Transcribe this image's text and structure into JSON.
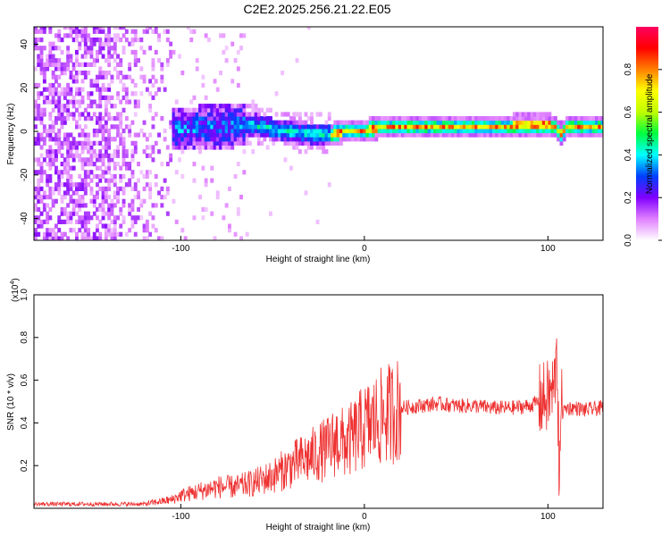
{
  "chart_data": [
    {
      "type": "heatmap",
      "title": "C2E2.2025.256.21.22.E05",
      "xlabel": "Height of straight line (km)",
      "ylabel": "Frequency (Hz)",
      "xlim": [
        -180,
        130
      ],
      "ylim": [
        -50,
        48
      ],
      "xticks": [
        -100,
        0,
        100
      ],
      "yticks": [
        -40,
        -20,
        0,
        20,
        40
      ],
      "colorbar": {
        "label": "Normalized spectral amplitude",
        "range": [
          0,
          1
        ],
        "ticks": [
          "0.0",
          "0.2",
          "0.4",
          "0.6",
          "0.8"
        ],
        "colors": [
          "#ffffff",
          "#e080ff",
          "#8000ff",
          "#0040ff",
          "#00ffff",
          "#00ff40",
          "#c0ff00",
          "#ffff00",
          "#ff8000",
          "#ff0000",
          "#ff0060"
        ]
      },
      "ridge": {
        "x": [
          -115,
          -100,
          -90,
          -80,
          -70,
          -60,
          -50,
          -40,
          -30,
          -20,
          -10,
          0,
          10,
          20,
          40,
          60,
          80,
          100,
          103,
          106,
          110,
          130
        ],
        "freq": [
          0,
          0,
          1,
          1,
          2,
          2,
          0,
          -1,
          -2,
          -2,
          -1,
          0,
          1,
          1,
          1,
          1,
          2,
          2,
          1,
          -2,
          1,
          1
        ]
      },
      "noise_region": [
        -180,
        -105
      ]
    },
    {
      "type": "line",
      "xlabel": "Height of straight line (km)",
      "ylabel": "SNR (10 * v/v)",
      "yscale_label": "(x10",
      "yscale_exp": "4",
      "yscale_close": ")",
      "xlim": [
        -180,
        130
      ],
      "ylim": [
        0,
        1.0
      ],
      "xticks": [
        -100,
        0,
        100
      ],
      "yticks": [
        "0.2",
        "0.4",
        "0.6",
        "0.8",
        "1.0"
      ],
      "color": "#ee3030",
      "series": [
        {
          "name": "SNR",
          "x": [
            -180,
            -140,
            -120,
            -105,
            -100,
            -90,
            -80,
            -70,
            -60,
            -50,
            -40,
            -30,
            -20,
            -15,
            -10,
            -5,
            0,
            10,
            20,
            30,
            40,
            50,
            60,
            70,
            80,
            90,
            95,
            100,
            103,
            105,
            106,
            107,
            108,
            110,
            115,
            120,
            130
          ],
          "values": [
            0.02,
            0.02,
            0.02,
            0.04,
            0.06,
            0.08,
            0.1,
            0.1,
            0.12,
            0.15,
            0.2,
            0.24,
            0.28,
            0.32,
            0.3,
            0.34,
            0.38,
            0.43,
            0.47,
            0.48,
            0.49,
            0.48,
            0.48,
            0.47,
            0.47,
            0.48,
            0.5,
            0.52,
            0.55,
            0.7,
            0.2,
            0.5,
            0.45,
            0.47,
            0.47,
            0.46,
            0.47
          ]
        }
      ]
    }
  ]
}
